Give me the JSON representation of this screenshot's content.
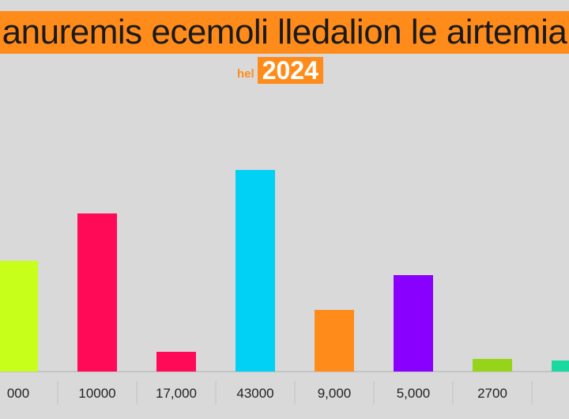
{
  "header": {
    "title": "anuremis ecemoli lledalion le airtemia",
    "subtitle_prefix": "hel",
    "subtitle_year": "2024"
  },
  "chart_data": {
    "type": "bar",
    "title": "anuremis ecemoli lledalion le airtemia",
    "subtitle": "hel 2024",
    "categories": [
      "000",
      "10000",
      "17,000",
      "43000",
      "9,000",
      "5,000",
      "2700",
      ""
    ],
    "values": [
      14000,
      20000,
      2500,
      25500,
      7800,
      12200,
      1600,
      1400
    ],
    "colors": [
      "#c8ff1a",
      "#ff0a57",
      "#ff0a57",
      "#00d1f5",
      "#ff8c1a",
      "#8a00ff",
      "#96d41a",
      "#1ad9a0"
    ],
    "ylim": [
      0,
      30000
    ],
    "xlabel": "",
    "ylabel": "",
    "grid": false,
    "legend": "none"
  }
}
